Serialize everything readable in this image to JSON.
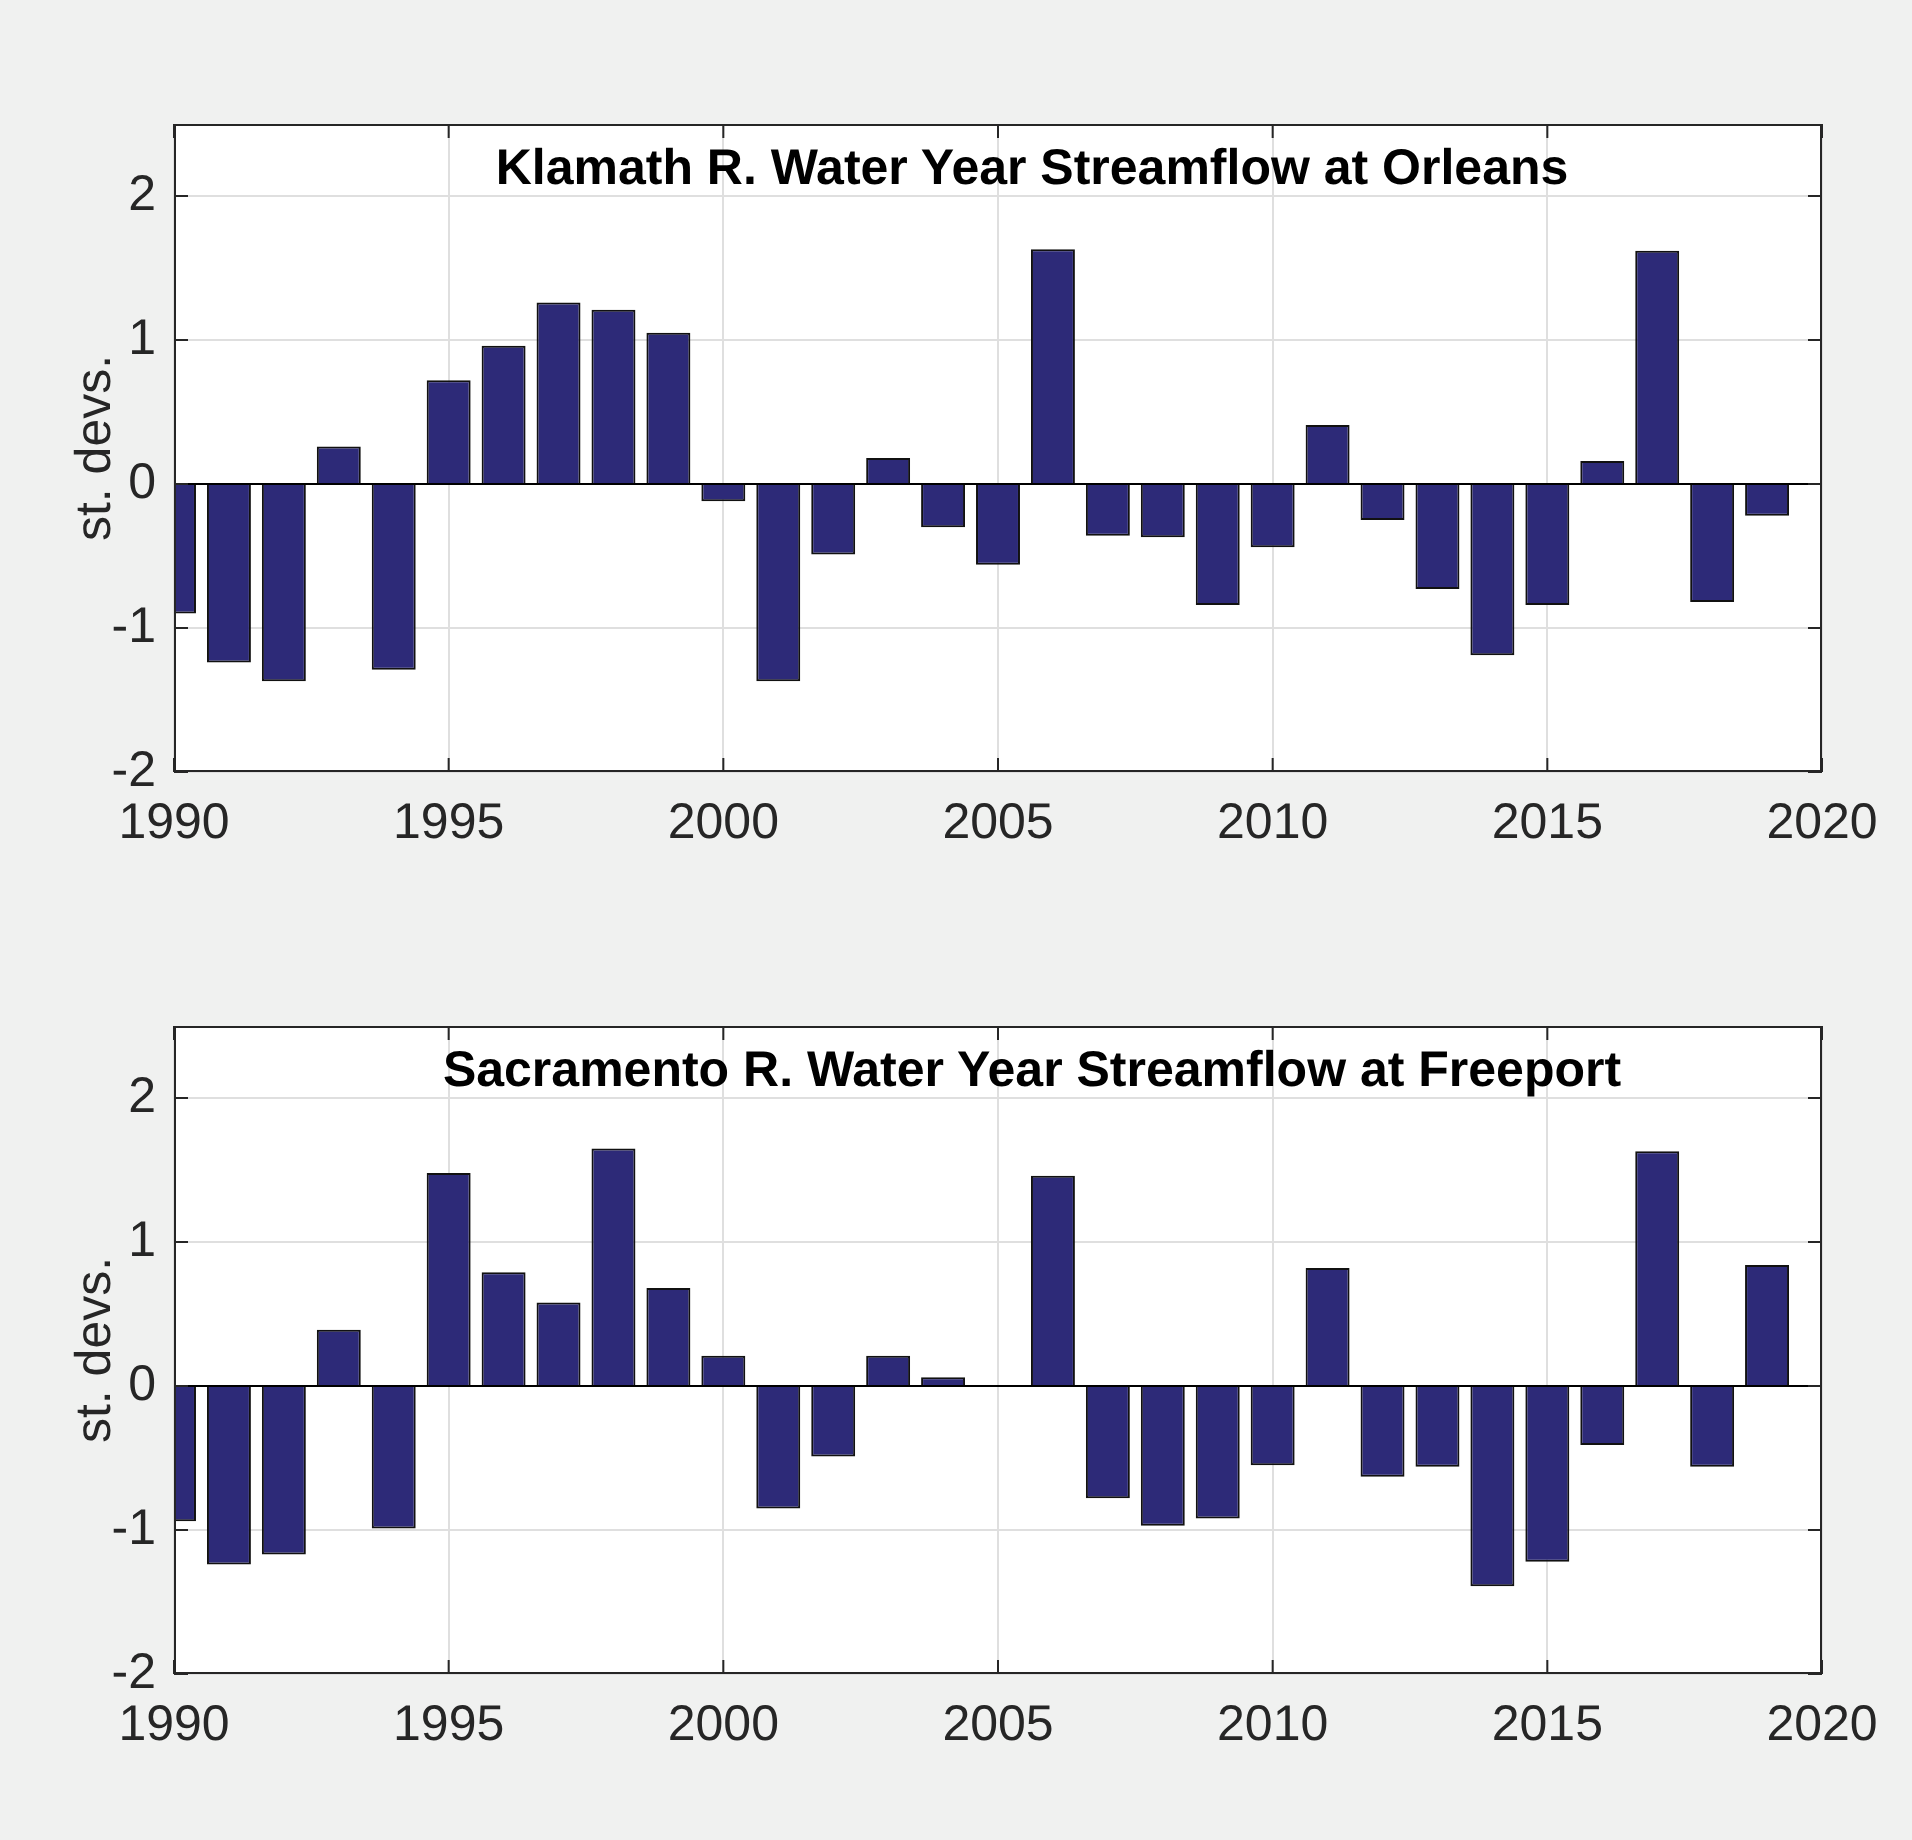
{
  "chart_data": [
    {
      "type": "bar",
      "title": "Klamath R. Water Year Streamflow at Orleans",
      "ylabel": "st. devs.",
      "x": [
        1990,
        1991,
        1992,
        1993,
        1994,
        1995,
        1996,
        1997,
        1998,
        1999,
        2000,
        2001,
        2002,
        2003,
        2004,
        2005,
        2006,
        2007,
        2008,
        2009,
        2010,
        2011,
        2012,
        2013,
        2014,
        2015,
        2016,
        2017,
        2018,
        2019
      ],
      "values": [
        -0.9,
        -1.24,
        -1.37,
        0.26,
        -1.29,
        0.72,
        0.96,
        1.26,
        1.21,
        1.05,
        -0.12,
        -1.37,
        -0.49,
        0.18,
        -0.3,
        -0.56,
        1.63,
        -0.36,
        -0.37,
        -0.84,
        -0.44,
        0.41,
        -0.25,
        -0.73,
        -1.19,
        -0.84,
        0.16,
        1.62,
        -0.82,
        -0.22
      ],
      "color": "#2d2a78",
      "xlim": [
        1990,
        2020
      ],
      "xticks": [
        1990,
        1995,
        2000,
        2005,
        2010,
        2015,
        2020
      ],
      "ylim": [
        -2,
        2.5
      ],
      "yticks": [
        -2,
        -1,
        0,
        1,
        2
      ],
      "grid": true,
      "ref_lines": [
        {
          "axis": "y",
          "value": 0,
          "color": "#000000"
        }
      ]
    },
    {
      "type": "bar",
      "title": "Sacramento R. Water Year Streamflow at Freeport",
      "ylabel": "st. devs.",
      "x": [
        1990,
        1991,
        1992,
        1993,
        1994,
        1995,
        1996,
        1997,
        1998,
        1999,
        2000,
        2001,
        2002,
        2003,
        2004,
        2005,
        2006,
        2007,
        2008,
        2009,
        2010,
        2011,
        2012,
        2013,
        2014,
        2015,
        2016,
        2017,
        2018,
        2019
      ],
      "values": [
        -0.94,
        -1.24,
        -1.17,
        0.39,
        -0.99,
        1.48,
        0.79,
        0.58,
        1.65,
        0.68,
        0.21,
        -0.85,
        -0.49,
        0.21,
        0.06,
        null,
        1.46,
        -0.78,
        -0.97,
        -0.92,
        -0.55,
        0.82,
        -0.63,
        -0.56,
        -1.39,
        -1.22,
        -0.41,
        1.63,
        -0.56,
        0.84
      ],
      "color": "#2d2a78",
      "xlim": [
        1990,
        2020
      ],
      "xticks": [
        1990,
        1995,
        2000,
        2005,
        2010,
        2015,
        2020
      ],
      "ylim": [
        -2,
        2.5
      ],
      "yticks": [
        -2,
        -1,
        0,
        1,
        2
      ],
      "grid": true,
      "ref_lines": [
        {
          "axis": "y",
          "value": 0,
          "color": "#000000"
        }
      ]
    }
  ]
}
